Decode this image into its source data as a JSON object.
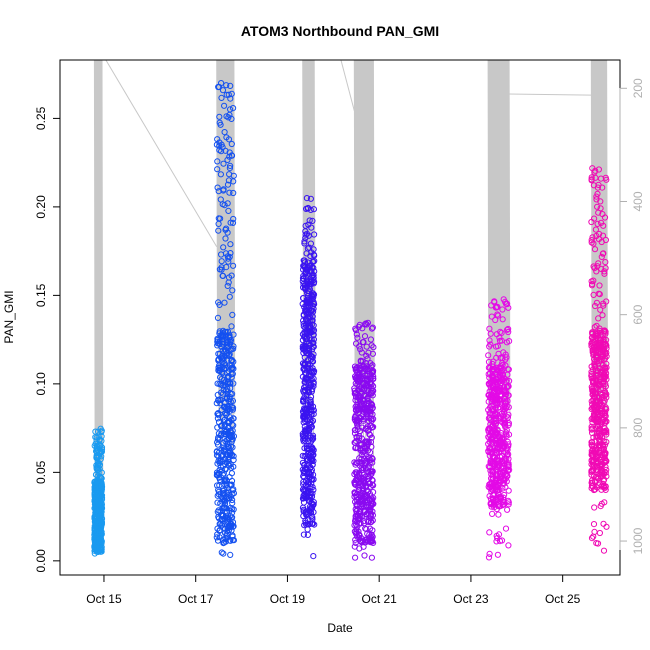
{
  "chart_data": {
    "type": "scatter",
    "title": "ATOM3 Northbound PAN_GMI",
    "xlabel": "Date",
    "ylabel": "PAN_GMI",
    "x_ticks": [
      "Oct 15",
      "Oct 17",
      "Oct 19",
      "Oct 21",
      "Oct 23",
      "Oct 25"
    ],
    "y_ticks": [
      "0.00",
      "0.05",
      "0.10",
      "0.15",
      "0.20",
      "0.25"
    ],
    "y2_ticks": [
      "200",
      "400",
      "600",
      "800",
      "1000"
    ],
    "xlim": [
      "2016-10-14T01:00",
      "2016-10-26T06:00"
    ],
    "ylim": [
      -0.008,
      0.283
    ],
    "y2lim": [
      1060,
      150
    ],
    "y2_reversed": true,
    "grid": false,
    "legend": "none",
    "marker": "open-circle",
    "secondary_line_color": "#c8c8c8",
    "series": [
      {
        "color": "#1a9af0",
        "x_range": [
          "2016-10-14T19:00",
          "2016-10-14T23:00"
        ],
        "values": [
          0.002,
          0.075
        ],
        "dense": [
          0.005,
          0.045
        ]
      },
      {
        "color": "#1450f0",
        "x_range": [
          "2016-10-17T11:00",
          "2016-10-17T20:00"
        ],
        "values": [
          0.0,
          0.27
        ],
        "dense": [
          0.01,
          0.13
        ]
      },
      {
        "color": "#3a14f0",
        "x_range": [
          "2016-10-19T08:00",
          "2016-10-19T14:00"
        ],
        "values": [
          0.0,
          0.205
        ],
        "dense": [
          0.02,
          0.17
        ]
      },
      {
        "color": "#8a0af0",
        "x_range": [
          "2016-10-20T11:00",
          "2016-10-20T21:00"
        ],
        "values": [
          0.0,
          0.135
        ],
        "dense": [
          0.01,
          0.11
        ]
      },
      {
        "color": "#e30ae6",
        "x_range": [
          "2016-10-23T09:00",
          "2016-10-23T20:00"
        ],
        "values": [
          0.0,
          0.148
        ],
        "dense": [
          0.03,
          0.11
        ]
      },
      {
        "color": "#f00ab4",
        "x_range": [
          "2016-10-25T15:00",
          "2016-10-25T23:00"
        ],
        "values": [
          0.002,
          0.222
        ],
        "dense": [
          0.04,
          0.13
        ]
      }
    ]
  }
}
